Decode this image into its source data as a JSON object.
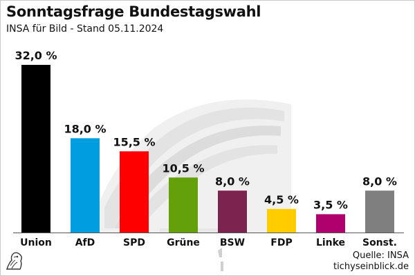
{
  "header": {
    "title": "Sonntagsfrage Bundestagswahl",
    "subtitle": "INSA für Bild - Stand 05.11.2024"
  },
  "footer": {
    "source": "Quelle: INSA",
    "site": "tichyseinblick.de"
  },
  "chart_data": {
    "type": "bar",
    "title": "Sonntagsfrage Bundestagswahl",
    "subtitle": "INSA für Bild - Stand 05.11.2024",
    "xlabel": "",
    "ylabel": "",
    "ylim": [
      0,
      34
    ],
    "grid": false,
    "categories": [
      "Union",
      "AfD",
      "SPD",
      "Grüne",
      "BSW",
      "FDP",
      "Linke",
      "Sonst."
    ],
    "values": [
      32.0,
      18.0,
      15.5,
      10.5,
      8.0,
      4.5,
      3.5,
      8.0
    ],
    "data_labels": [
      "32,0 %",
      "18,0 %",
      "15,5 %",
      "10,5 %",
      "8,0 %",
      "4,5 %",
      "3,5 %",
      "8,0 %"
    ],
    "colors": [
      "#000000",
      "#009ee0",
      "#ff0000",
      "#64a00a",
      "#7c2350",
      "#ffcc00",
      "#b0006e",
      "#7f7f7f"
    ]
  }
}
